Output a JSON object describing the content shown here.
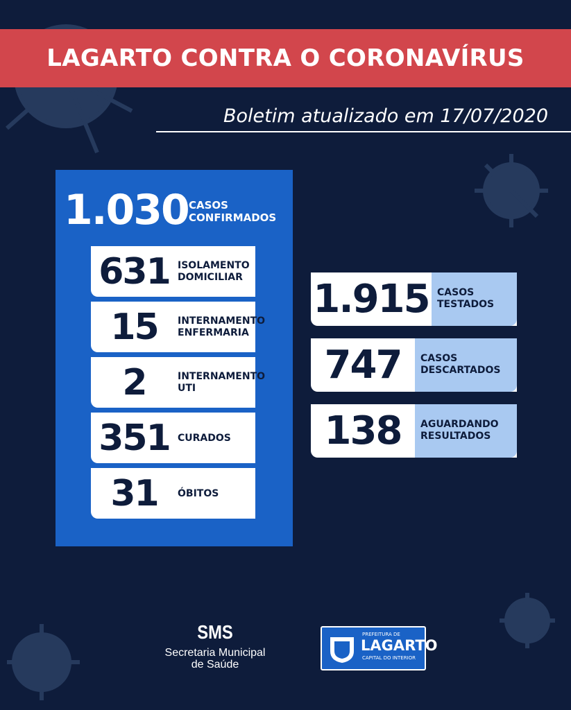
{
  "header": {
    "title": "LAGARTO CONTRA O CORONAVÍRUS",
    "subtitle": "Boletim atualizado em 17/07/2020"
  },
  "confirmed": {
    "number": "1.030",
    "label": [
      "CASOS",
      "CONFIRMADOS"
    ]
  },
  "breakdown": [
    {
      "number": "631",
      "label": [
        "ISOLAMENTO",
        "DOMICILIAR"
      ]
    },
    {
      "number": "15",
      "label": [
        "INTERNAMENTO",
        "ENFERMARIA"
      ]
    },
    {
      "number": "2",
      "label": [
        "INTERNAMENTO",
        "UTI"
      ]
    },
    {
      "number": "351",
      "label": [
        "CURADOS"
      ]
    },
    {
      "number": "31",
      "label": [
        "ÓBITOS"
      ]
    }
  ],
  "tests": [
    {
      "number": "1.915",
      "label": [
        "CASOS",
        "TESTADOS"
      ]
    },
    {
      "number": "747",
      "label": [
        "CASOS",
        "DESCARTADOS"
      ]
    },
    {
      "number": "138",
      "label": [
        "AGUARDANDO",
        "RESULTADOS"
      ]
    }
  ],
  "footer": {
    "sms": "SMS",
    "secretaria": [
      "Secretaria Municipal",
      "de Saúde"
    ],
    "logo": {
      "prefeitura": "PREFEITURA DE",
      "name": "LAGARTO",
      "tagline": "CAPITAL DO INTERIOR"
    }
  }
}
